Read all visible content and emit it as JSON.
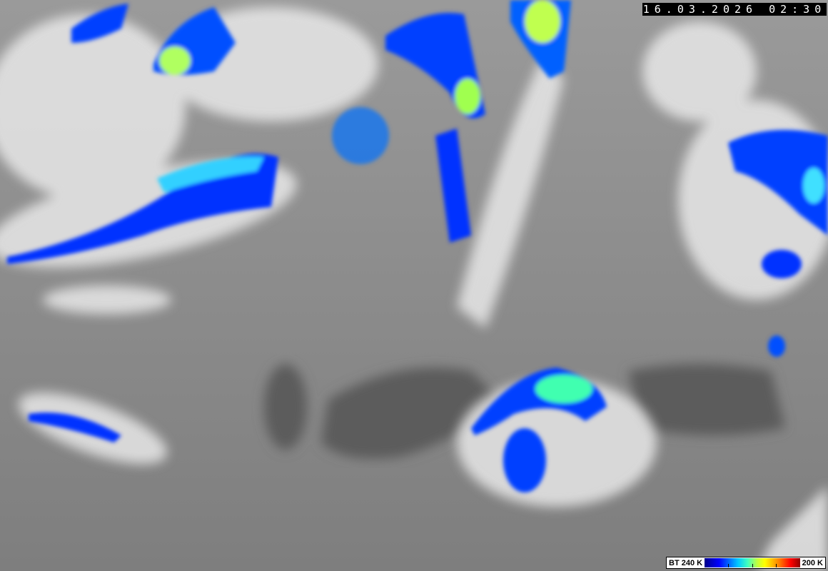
{
  "timestamp": "16.03.2026 02:30",
  "legend": {
    "low_label": "BT 240 K",
    "high_label": "200 K",
    "colors": [
      "#00008a",
      "#0000ff",
      "#00c8ff",
      "#40ffc0",
      "#ffff00",
      "#ff8000",
      "#ff0000",
      "#900000"
    ]
  },
  "image": {
    "type": "infrared satellite image",
    "colormap_for_cold_cloud_tops": "blue-cyan-yellow-red"
  }
}
